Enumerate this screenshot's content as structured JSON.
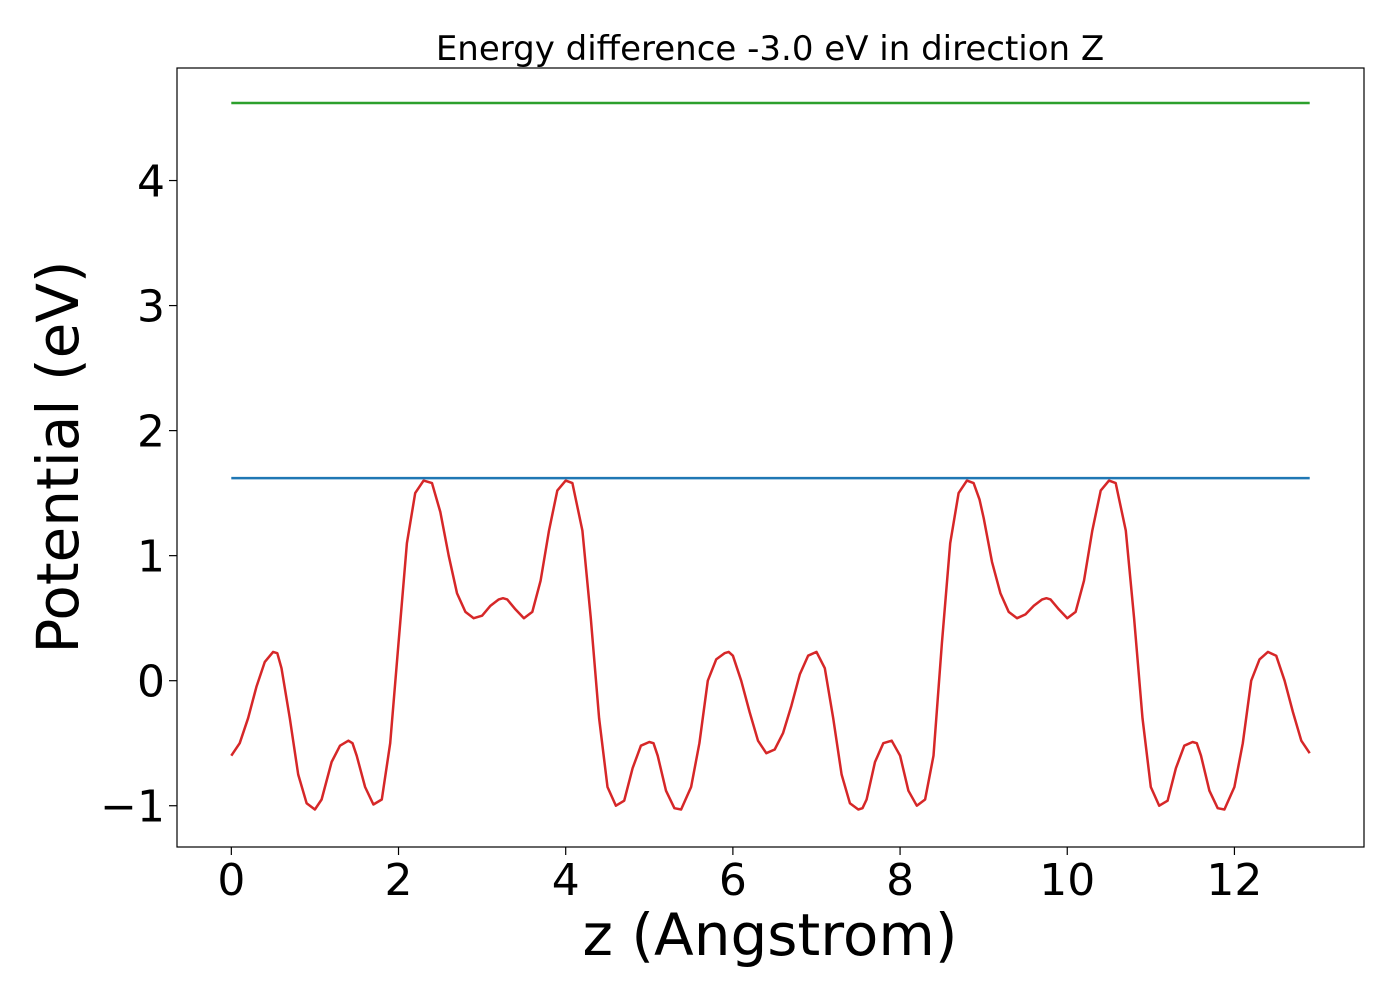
{
  "chart_data": {
    "type": "line",
    "title": "Energy difference -3.0 eV in direction Z",
    "xlabel": "z (Angstrom)",
    "ylabel": "Potential (eV)",
    "xlim": [
      -0.65,
      13.55
    ],
    "ylim": [
      -1.33,
      4.9
    ],
    "xticks": [
      0,
      2,
      4,
      6,
      8,
      10,
      12
    ],
    "xtick_labels": [
      "0",
      "2",
      "4",
      "6",
      "8",
      "10",
      "12"
    ],
    "yticks": [
      -1,
      0,
      1,
      2,
      3,
      4
    ],
    "ytick_labels": [
      "−1",
      "0",
      "1",
      "2",
      "3",
      "4"
    ],
    "grid": false,
    "legend": "none",
    "series": [
      {
        "color": "#d62728",
        "x": [
          0.0,
          0.1,
          0.2,
          0.3,
          0.4,
          0.5,
          0.55,
          0.6,
          0.7,
          0.8,
          0.9,
          1.0,
          1.08,
          1.2,
          1.3,
          1.4,
          1.45,
          1.5,
          1.6,
          1.7,
          1.8,
          1.9,
          2.0,
          2.1,
          2.2,
          2.3,
          2.4,
          2.5,
          2.6,
          2.7,
          2.8,
          2.9,
          3.0,
          3.1,
          3.2,
          3.25,
          3.3,
          3.4,
          3.5,
          3.6,
          3.7,
          3.8,
          3.9,
          4.0,
          4.08,
          4.2,
          4.3,
          4.4,
          4.5,
          4.6,
          4.7,
          4.8,
          4.9,
          5.0,
          5.05,
          5.1,
          5.2,
          5.3,
          5.38,
          5.5,
          5.6,
          5.7,
          5.8,
          5.9,
          5.95,
          6.0,
          6.1,
          6.2,
          6.3,
          6.4,
          6.5,
          6.6,
          6.7,
          6.8,
          6.9,
          7.0,
          7.1,
          7.2,
          7.3,
          7.4,
          7.5,
          7.55,
          7.6,
          7.7,
          7.8,
          7.9,
          8.0,
          8.1,
          8.2,
          8.3,
          8.4,
          8.5,
          8.6,
          8.7,
          8.8,
          8.88,
          8.95,
          9.0,
          9.1,
          9.2,
          9.3,
          9.4,
          9.5,
          9.6,
          9.7,
          9.75,
          9.8,
          9.9,
          10.0,
          10.1,
          10.2,
          10.3,
          10.4,
          10.5,
          10.58,
          10.7,
          10.8,
          10.9,
          11.0,
          11.1,
          11.2,
          11.3,
          11.4,
          11.5,
          11.55,
          11.6,
          11.7,
          11.8,
          11.88,
          12.0,
          12.1,
          12.2,
          12.3,
          12.4,
          12.5,
          12.6,
          12.7,
          12.8,
          12.9
        ],
        "y": [
          -0.6,
          -0.5,
          -0.3,
          -0.05,
          0.15,
          0.23,
          0.22,
          0.1,
          -0.3,
          -0.75,
          -0.98,
          -1.03,
          -0.95,
          -0.65,
          -0.52,
          -0.48,
          -0.5,
          -0.6,
          -0.85,
          -0.99,
          -0.95,
          -0.5,
          0.3,
          1.1,
          1.5,
          1.6,
          1.58,
          1.35,
          1.0,
          0.7,
          0.55,
          0.5,
          0.52,
          0.6,
          0.65,
          0.66,
          0.65,
          0.57,
          0.5,
          0.55,
          0.8,
          1.2,
          1.52,
          1.6,
          1.58,
          1.2,
          0.5,
          -0.3,
          -0.85,
          -1.0,
          -0.96,
          -0.7,
          -0.52,
          -0.49,
          -0.5,
          -0.6,
          -0.88,
          -1.02,
          -1.03,
          -0.85,
          -0.5,
          0.0,
          0.17,
          0.22,
          0.23,
          0.2,
          0.0,
          -0.25,
          -0.48,
          -0.58,
          -0.55,
          -0.42,
          -0.2,
          0.05,
          0.2,
          0.23,
          0.1,
          -0.3,
          -0.75,
          -0.98,
          -1.03,
          -1.02,
          -0.95,
          -0.65,
          -0.5,
          -0.48,
          -0.6,
          -0.88,
          -1.0,
          -0.95,
          -0.6,
          0.3,
          1.1,
          1.5,
          1.6,
          1.58,
          1.45,
          1.3,
          0.95,
          0.7,
          0.55,
          0.5,
          0.53,
          0.6,
          0.65,
          0.66,
          0.65,
          0.57,
          0.5,
          0.55,
          0.8,
          1.2,
          1.52,
          1.6,
          1.58,
          1.2,
          0.5,
          -0.3,
          -0.85,
          -1.0,
          -0.96,
          -0.7,
          -0.52,
          -0.49,
          -0.5,
          -0.6,
          -0.88,
          -1.02,
          -1.03,
          -0.85,
          -0.5,
          0.0,
          0.17,
          0.23,
          0.2,
          0.0,
          -0.25,
          -0.48,
          -0.58
        ]
      },
      {
        "color": "#1f77b4",
        "x": [
          0.0,
          12.9
        ],
        "y": [
          1.62,
          1.62
        ]
      },
      {
        "color": "#2ca02c",
        "x": [
          0.0,
          12.9
        ],
        "y": [
          4.62,
          4.62
        ]
      }
    ]
  }
}
